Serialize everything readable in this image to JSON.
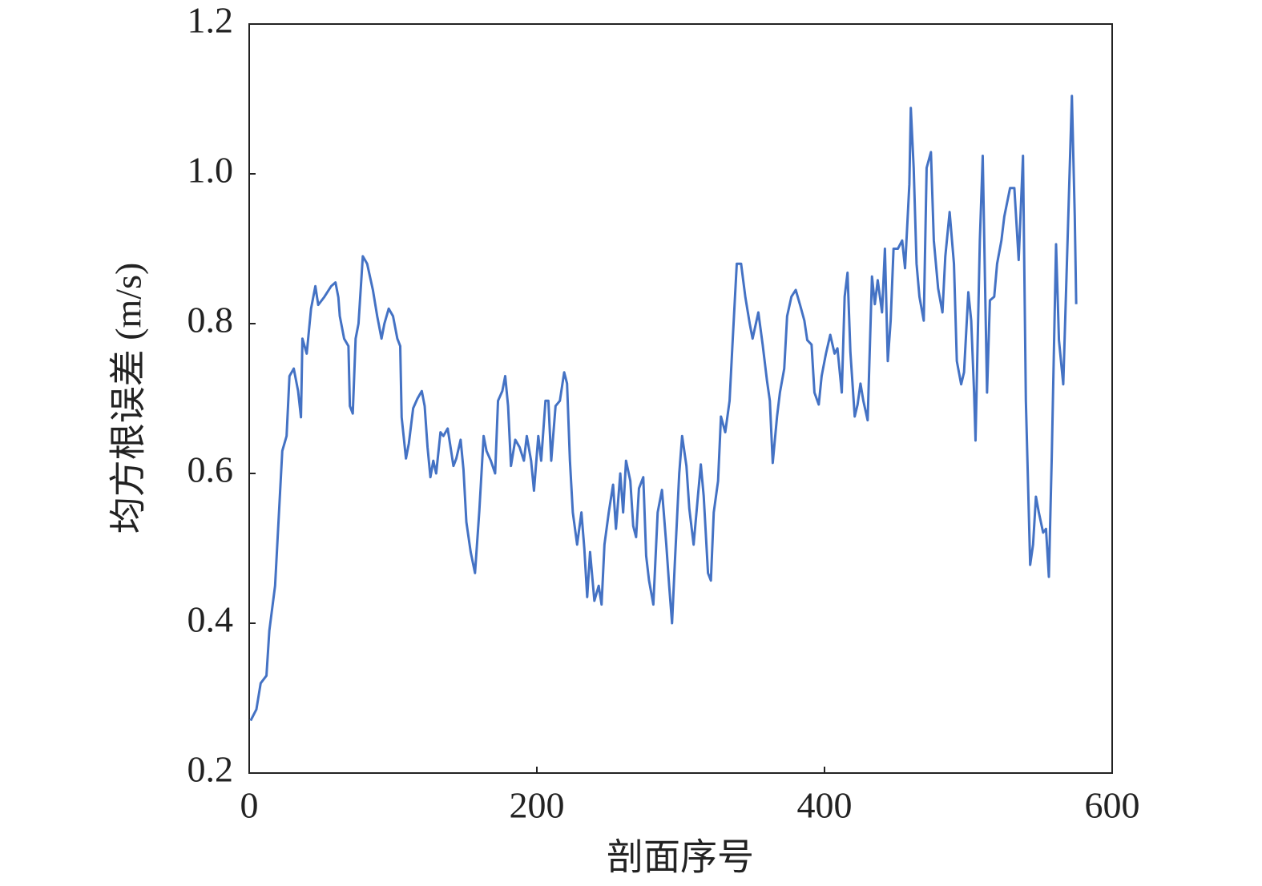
{
  "chart_data": {
    "type": "line",
    "xlabel": "剖面序号",
    "ylabel": "均方根误差 (m/s)",
    "color": "#4472c4",
    "xlim": [
      0,
      600
    ],
    "xticks": [
      0,
      200,
      400,
      600
    ],
    "ylim": [
      0.2,
      1.2
    ],
    "yticks": [
      0.2,
      0.4,
      0.6,
      0.8,
      {
        "value": 1,
        "label": "1.0"
      },
      1.2
    ],
    "x": [
      1,
      5,
      8,
      12,
      14,
      18,
      23,
      26,
      28,
      31,
      34,
      36,
      37,
      40,
      43,
      46,
      48,
      52,
      57,
      60,
      62,
      63,
      66,
      69,
      70,
      72,
      74,
      76,
      79,
      82,
      86,
      89,
      92,
      94,
      97,
      100,
      103,
      105,
      106,
      109,
      111,
      114,
      117,
      120,
      122,
      124,
      126,
      128,
      130,
      133,
      135,
      138,
      140,
      142,
      144,
      147,
      149,
      151,
      154,
      157,
      160,
      163,
      165,
      168,
      171,
      173,
      176,
      178,
      180,
      182,
      185,
      188,
      191,
      193,
      196,
      198,
      201,
      203,
      206,
      208,
      210,
      213,
      216,
      219,
      221,
      223,
      225,
      228,
      231,
      233,
      235,
      237,
      240,
      243,
      245,
      247,
      250,
      253,
      255,
      258,
      260,
      262,
      265,
      267,
      269,
      271,
      274,
      276,
      278,
      281,
      284,
      287,
      290,
      292,
      294,
      296,
      299,
      301,
      304,
      306,
      309,
      312,
      314,
      316,
      319,
      321,
      323,
      326,
      328,
      331,
      334,
      336,
      339,
      342,
      345,
      348,
      350,
      354,
      357,
      360,
      362,
      364,
      367,
      369,
      372,
      374,
      377,
      380,
      383,
      386,
      388,
      391,
      393,
      396,
      398,
      401,
      404,
      407,
      409,
      412,
      414,
      416,
      418,
      421,
      423,
      425,
      427,
      430,
      433,
      435,
      437,
      440,
      442,
      444,
      446,
      448,
      451,
      454,
      456,
      459,
      460,
      462,
      464,
      466,
      469,
      471,
      474,
      476,
      479,
      482,
      484,
      487,
      490,
      492,
      495,
      497,
      500,
      502,
      504,
      505,
      508,
      510,
      513,
      515,
      518,
      520,
      523,
      525,
      529,
      532,
      535,
      538,
      540,
      543,
      545,
      547,
      549,
      552,
      554,
      556,
      558,
      561,
      563,
      566,
      569,
      572,
      574,
      575
    ],
    "values": [
      0.27,
      0.285,
      0.32,
      0.33,
      0.39,
      0.45,
      0.63,
      0.65,
      0.73,
      0.74,
      0.71,
      0.675,
      0.78,
      0.76,
      0.82,
      0.85,
      0.825,
      0.835,
      0.85,
      0.855,
      0.835,
      0.81,
      0.78,
      0.77,
      0.69,
      0.68,
      0.78,
      0.8,
      0.89,
      0.88,
      0.845,
      0.81,
      0.78,
      0.8,
      0.82,
      0.81,
      0.78,
      0.77,
      0.675,
      0.62,
      0.64,
      0.687,
      0.7,
      0.71,
      0.69,
      0.635,
      0.595,
      0.617,
      0.6,
      0.655,
      0.65,
      0.66,
      0.635,
      0.61,
      0.62,
      0.645,
      0.605,
      0.535,
      0.495,
      0.467,
      0.55,
      0.65,
      0.63,
      0.617,
      0.6,
      0.697,
      0.71,
      0.73,
      0.69,
      0.61,
      0.645,
      0.635,
      0.617,
      0.65,
      0.617,
      0.577,
      0.65,
      0.617,
      0.697,
      0.697,
      0.617,
      0.69,
      0.697,
      0.735,
      0.72,
      0.617,
      0.548,
      0.505,
      0.548,
      0.5,
      0.435,
      0.495,
      0.43,
      0.45,
      0.425,
      0.505,
      0.548,
      0.585,
      0.526,
      0.6,
      0.548,
      0.617,
      0.59,
      0.53,
      0.515,
      0.58,
      0.595,
      0.49,
      0.457,
      0.425,
      0.548,
      0.578,
      0.505,
      0.45,
      0.4,
      0.483,
      0.6,
      0.65,
      0.61,
      0.553,
      0.505,
      0.57,
      0.612,
      0.57,
      0.467,
      0.457,
      0.548,
      0.59,
      0.676,
      0.655,
      0.697,
      0.772,
      0.88,
      0.88,
      0.835,
      0.8,
      0.78,
      0.815,
      0.772,
      0.724,
      0.697,
      0.614,
      0.676,
      0.708,
      0.74,
      0.81,
      0.836,
      0.845,
      0.825,
      0.804,
      0.778,
      0.772,
      0.708,
      0.692,
      0.73,
      0.76,
      0.785,
      0.76,
      0.767,
      0.708,
      0.836,
      0.868,
      0.762,
      0.676,
      0.692,
      0.72,
      0.697,
      0.671,
      0.863,
      0.826,
      0.858,
      0.815,
      0.9,
      0.75,
      0.804,
      0.9,
      0.9,
      0.911,
      0.874,
      0.986,
      1.088,
      1.008,
      0.88,
      0.836,
      0.804,
      1.008,
      1.029,
      0.911,
      0.847,
      0.815,
      0.89,
      0.949,
      0.88,
      0.75,
      0.719,
      0.735,
      0.842,
      0.804,
      0.708,
      0.644,
      0.911,
      1.024,
      0.708,
      0.831,
      0.836,
      0.88,
      0.911,
      0.943,
      0.981,
      0.981,
      0.885,
      1.024,
      0.697,
      0.478,
      0.505,
      0.569,
      0.548,
      0.521,
      0.526,
      0.462,
      0.622,
      0.906,
      0.778,
      0.719,
      0.911,
      1.104,
      0.943,
      0.826
    ]
  }
}
